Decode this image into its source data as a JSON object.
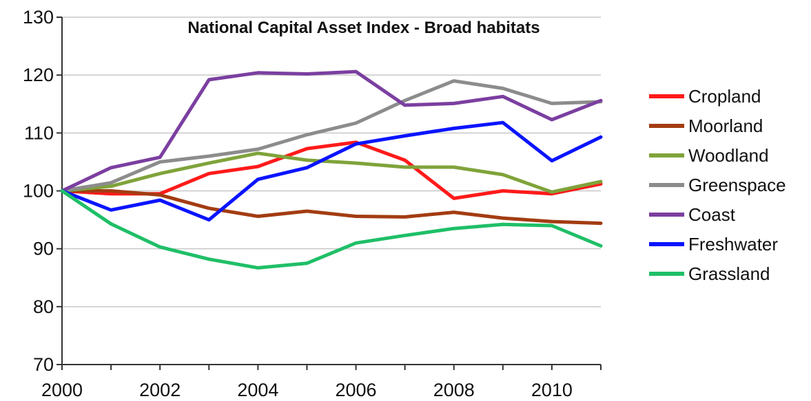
{
  "chart_data": {
    "type": "line",
    "title": "National Capital Asset Index - Broad habitats",
    "xlabel": "",
    "ylabel": "",
    "x": [
      2000,
      2001,
      2002,
      2003,
      2004,
      2005,
      2006,
      2007,
      2008,
      2009,
      2010,
      2011
    ],
    "xlim": [
      2000,
      2011
    ],
    "ylim": [
      70,
      130
    ],
    "x_ticks": [
      "2000",
      "2002",
      "2004",
      "2006",
      "2008",
      "2010"
    ],
    "y_ticks": [
      "70",
      "80",
      "90",
      "100",
      "110",
      "120",
      "130"
    ],
    "grid": true,
    "legend_position": "right",
    "series": [
      {
        "name": "Cropland",
        "color": "#ff1a1a",
        "values": [
          100,
          99.5,
          99.5,
          103,
          104.2,
          107.3,
          108.4,
          105.3,
          98.7,
          100,
          99.5,
          101.2
        ]
      },
      {
        "name": "Moorland",
        "color": "#a33c12",
        "values": [
          100,
          100,
          99.3,
          97,
          95.6,
          96.5,
          95.6,
          95.5,
          96.3,
          95.3,
          94.7,
          94.4
        ]
      },
      {
        "name": "Woodland",
        "color": "#7fa33a",
        "values": [
          100,
          100.8,
          103,
          104.8,
          106.5,
          105.3,
          104.8,
          104.1,
          104.1,
          102.8,
          99.8,
          101.6
        ]
      },
      {
        "name": "Greenspace",
        "color": "#8c8c8c",
        "values": [
          100,
          101.4,
          105,
          106,
          107.2,
          109.7,
          111.7,
          115.6,
          119,
          117.7,
          115.1,
          115.4
        ]
      },
      {
        "name": "Coast",
        "color": "#7b3fa0",
        "values": [
          100,
          104,
          105.8,
          119.2,
          120.4,
          120.2,
          120.6,
          114.8,
          115.1,
          116.3,
          112.3,
          115.6
        ]
      },
      {
        "name": "Freshwater",
        "color": "#0a14ff",
        "values": [
          100,
          96.7,
          98.4,
          95,
          102,
          104,
          108.1,
          109.5,
          110.8,
          111.8,
          105.2,
          109.3
        ]
      },
      {
        "name": "Grassland",
        "color": "#1fbf67",
        "values": [
          100,
          94.3,
          90.3,
          88.2,
          86.7,
          87.5,
          91,
          92.3,
          93.5,
          94.2,
          94,
          90.5
        ]
      }
    ]
  }
}
